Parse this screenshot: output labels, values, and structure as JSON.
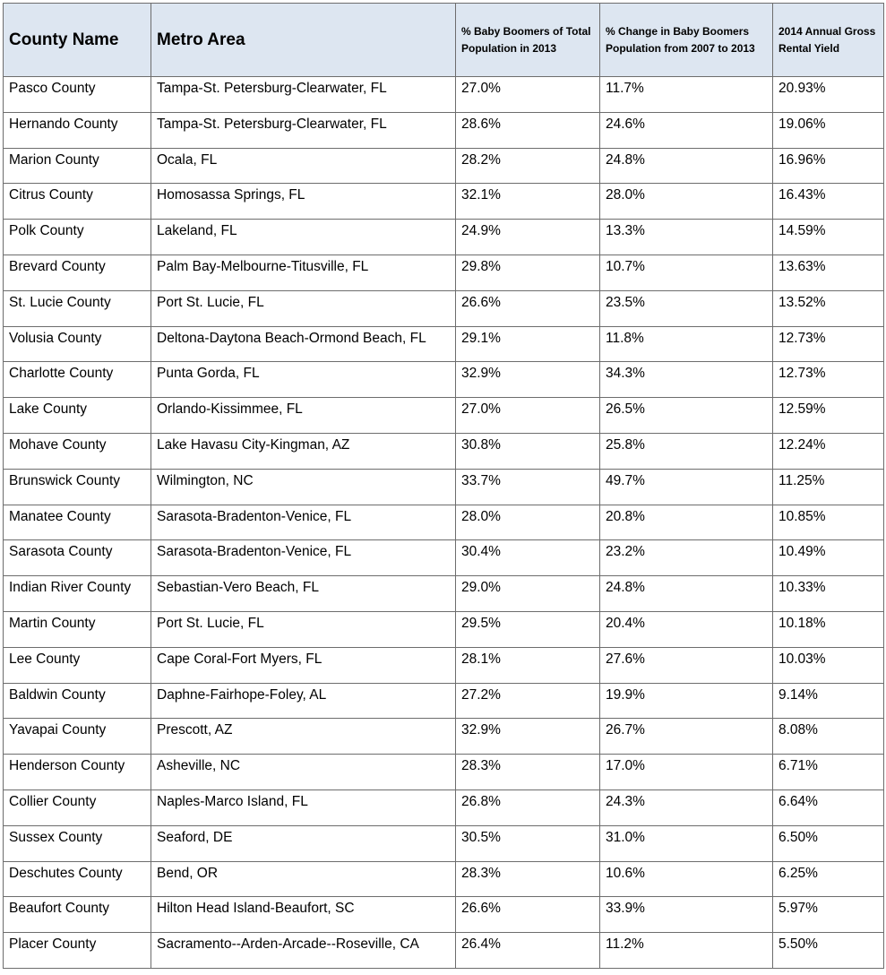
{
  "table": {
    "headers": [
      "County Name",
      "Metro Area",
      "% Baby Boomers of Total Population in 2013",
      "% Change in Baby Boomers Population from 2007 to 2013",
      "2014 Annual Gross Rental Yield"
    ],
    "rows": [
      [
        "Pasco County",
        "Tampa-St. Petersburg-Clearwater, FL",
        "27.0%",
        "11.7%",
        "20.93%"
      ],
      [
        "Hernando County",
        "Tampa-St. Petersburg-Clearwater, FL",
        "28.6%",
        "24.6%",
        "19.06%"
      ],
      [
        "Marion County",
        "Ocala, FL",
        "28.2%",
        "24.8%",
        "16.96%"
      ],
      [
        "Citrus County",
        "Homosassa Springs, FL",
        "32.1%",
        "28.0%",
        "16.43%"
      ],
      [
        "Polk County",
        "Lakeland, FL",
        "24.9%",
        "13.3%",
        "14.59%"
      ],
      [
        "Brevard County",
        "Palm Bay-Melbourne-Titusville, FL",
        "29.8%",
        "10.7%",
        "13.63%"
      ],
      [
        "St. Lucie County",
        "Port St. Lucie, FL",
        "26.6%",
        "23.5%",
        "13.52%"
      ],
      [
        "Volusia County",
        "Deltona-Daytona Beach-Ormond Beach, FL",
        "29.1%",
        "11.8%",
        "12.73%"
      ],
      [
        "Charlotte County",
        "Punta Gorda, FL",
        "32.9%",
        "34.3%",
        "12.73%"
      ],
      [
        "Lake County",
        "Orlando-Kissimmee, FL",
        "27.0%",
        "26.5%",
        "12.59%"
      ],
      [
        "Mohave County",
        "Lake Havasu City-Kingman, AZ",
        "30.8%",
        "25.8%",
        "12.24%"
      ],
      [
        "Brunswick County",
        "Wilmington, NC",
        "33.7%",
        "49.7%",
        "11.25%"
      ],
      [
        "Manatee County",
        "Sarasota-Bradenton-Venice, FL",
        "28.0%",
        "20.8%",
        "10.85%"
      ],
      [
        "Sarasota County",
        "Sarasota-Bradenton-Venice, FL",
        "30.4%",
        "23.2%",
        "10.49%"
      ],
      [
        "Indian River County",
        "Sebastian-Vero Beach, FL",
        "29.0%",
        "24.8%",
        "10.33%"
      ],
      [
        "Martin County",
        "Port St. Lucie, FL",
        "29.5%",
        "20.4%",
        "10.18%"
      ],
      [
        "Lee County",
        "Cape Coral-Fort Myers, FL",
        "28.1%",
        "27.6%",
        "10.03%"
      ],
      [
        "Baldwin County",
        "Daphne-Fairhope-Foley, AL",
        "27.2%",
        "19.9%",
        "9.14%"
      ],
      [
        "Yavapai County",
        "Prescott, AZ",
        "32.9%",
        "26.7%",
        "8.08%"
      ],
      [
        "Henderson County",
        "Asheville, NC",
        "28.3%",
        "17.0%",
        "6.71%"
      ],
      [
        "Collier County",
        "Naples-Marco Island, FL",
        "26.8%",
        "24.3%",
        "6.64%"
      ],
      [
        "Sussex County",
        "Seaford, DE",
        "30.5%",
        "31.0%",
        "6.50%"
      ],
      [
        "Deschutes County",
        "Bend, OR",
        "28.3%",
        "10.6%",
        "6.25%"
      ],
      [
        "Beaufort County",
        "Hilton Head Island-Beaufort, SC",
        "26.6%",
        "33.9%",
        "5.97%"
      ],
      [
        "Placer County",
        "Sacramento--Arden-Arcade--Roseville, CA",
        "26.4%",
        "11.2%",
        "5.50%"
      ]
    ]
  },
  "colors": {
    "header_background": "#dde6f1",
    "border": "#6d6d6d"
  }
}
